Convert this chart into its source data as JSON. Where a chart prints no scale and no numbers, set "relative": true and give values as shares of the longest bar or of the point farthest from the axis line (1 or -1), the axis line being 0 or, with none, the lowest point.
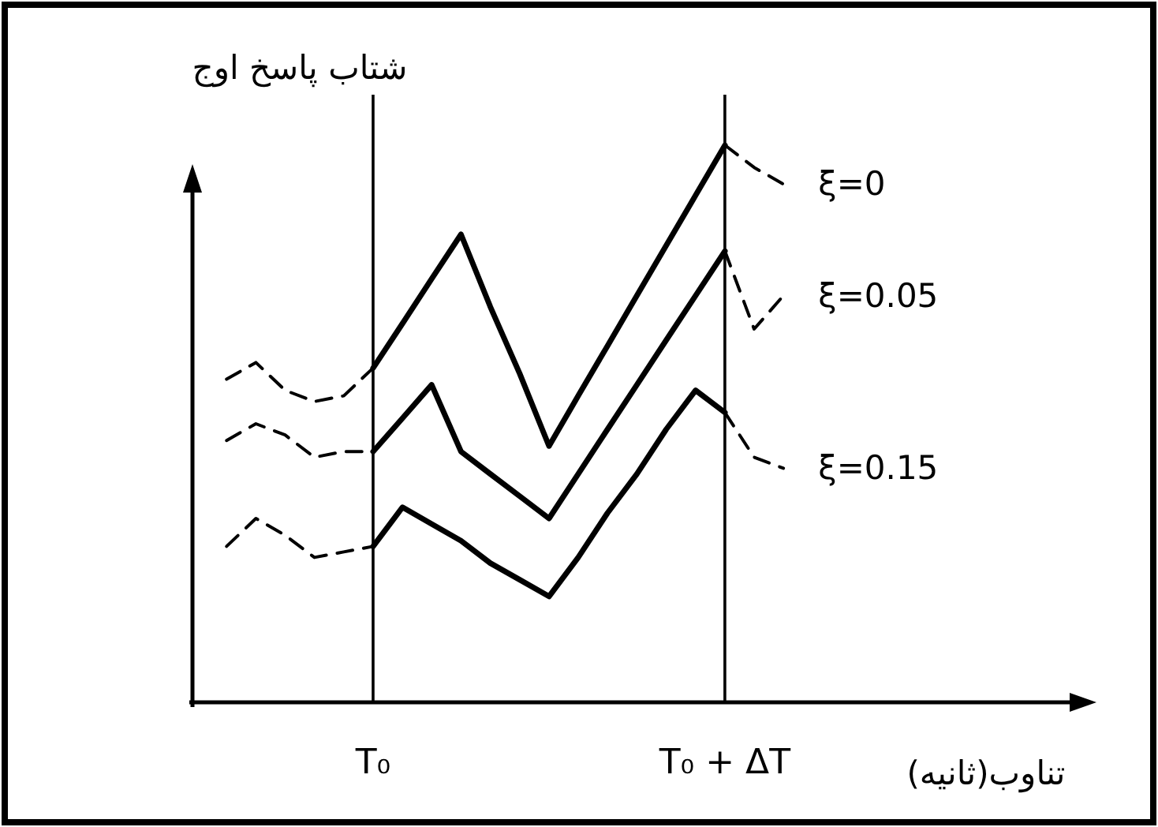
{
  "chart_data": {
    "type": "line",
    "relative": true,
    "ylabel": "شتاب پاسخ اوج",
    "xlabel": "تناوب(ثانیه)",
    "categories": [
      null,
      null,
      null,
      null,
      null,
      null,
      "T₀",
      null,
      null,
      null,
      null,
      null,
      null,
      null,
      null,
      null,
      null,
      null,
      "T₀ + ΔT",
      null,
      null,
      null,
      null,
      null,
      null,
      null,
      null,
      null,
      null,
      null,
      null,
      null
    ],
    "ref_lines": [
      {
        "axis": "x",
        "value": "T₀",
        "color": "#000000"
      },
      {
        "axis": "x",
        "value": "T₀ + ΔT",
        "color": "#000000"
      }
    ],
    "series": [
      {
        "name": "ξ=0",
        "color": "#000000",
        "line_style": "solid",
        "values": [
          null,
          null,
          null,
          null,
          null,
          null,
          0.6,
          0.68,
          0.76,
          0.84,
          0.71,
          0.59,
          0.46,
          0.55,
          0.64,
          0.73,
          0.82,
          0.91,
          1.0,
          null,
          null,
          null,
          null,
          null,
          null,
          null,
          null,
          null,
          null,
          null,
          null,
          null
        ]
      },
      {
        "color": "#000000",
        "line_style": "dashed",
        "values": [
          null,
          null,
          null,
          null,
          null,
          null,
          null,
          null,
          null,
          null,
          null,
          null,
          null,
          null,
          null,
          null,
          null,
          null,
          1.0,
          0.96,
          0.93,
          null,
          null,
          null,
          null,
          null,
          null,
          null,
          null,
          null,
          null,
          null
        ]
      },
      {
        "color": "#000000",
        "line_style": "dashed",
        "values": [
          null,
          0.58,
          0.61,
          0.56,
          0.54,
          0.55,
          0.6,
          null,
          null,
          null,
          null,
          null,
          null,
          null,
          null,
          null,
          null,
          null,
          null,
          null,
          null,
          null,
          null,
          null,
          null,
          null,
          null,
          null,
          null,
          null,
          null,
          null
        ]
      },
      {
        "name": "ξ=0.05",
        "color": "#000000",
        "line_style": "solid",
        "values": [
          null,
          null,
          null,
          null,
          null,
          null,
          0.45,
          0.51,
          0.57,
          0.45,
          0.41,
          0.37,
          0.33,
          0.41,
          0.49,
          0.57,
          0.65,
          0.73,
          0.81,
          null,
          null,
          null,
          null,
          null,
          null,
          null,
          null,
          null,
          null,
          null,
          null,
          null
        ]
      },
      {
        "color": "#000000",
        "line_style": "dashed",
        "values": [
          null,
          null,
          null,
          null,
          null,
          null,
          null,
          null,
          null,
          null,
          null,
          null,
          null,
          null,
          null,
          null,
          null,
          null,
          0.81,
          0.67,
          0.73,
          null,
          null,
          null,
          null,
          null,
          null,
          null,
          null,
          null,
          null,
          null
        ]
      },
      {
        "color": "#000000",
        "line_style": "dashed",
        "values": [
          null,
          0.47,
          0.5,
          0.48,
          0.44,
          0.45,
          0.45,
          null,
          null,
          null,
          null,
          null,
          null,
          null,
          null,
          null,
          null,
          null,
          null,
          null,
          null,
          null,
          null,
          null,
          null,
          null,
          null,
          null,
          null,
          null,
          null,
          null
        ]
      },
      {
        "name": "ξ=0.15",
        "color": "#000000",
        "line_style": "solid",
        "values": [
          null,
          null,
          null,
          null,
          null,
          null,
          0.28,
          0.35,
          0.32,
          0.29,
          0.25,
          0.22,
          0.19,
          0.26,
          0.34,
          0.41,
          0.49,
          0.56,
          0.52,
          null,
          null,
          null,
          null,
          null,
          null,
          null,
          null,
          null,
          null,
          null,
          null,
          null
        ]
      },
      {
        "color": "#000000",
        "line_style": "dashed",
        "values": [
          null,
          null,
          null,
          null,
          null,
          null,
          null,
          null,
          null,
          null,
          null,
          null,
          null,
          null,
          null,
          null,
          null,
          null,
          0.52,
          0.44,
          0.42,
          null,
          null,
          null,
          null,
          null,
          null,
          null,
          null,
          null,
          null,
          null
        ]
      },
      {
        "color": "#000000",
        "line_style": "dashed",
        "values": [
          null,
          0.28,
          0.33,
          0.3,
          0.26,
          0.27,
          0.28,
          null,
          null,
          null,
          null,
          null,
          null,
          null,
          null,
          null,
          null,
          null,
          null,
          null,
          null,
          null,
          null,
          null,
          null,
          null,
          null,
          null,
          null,
          null,
          null,
          null
        ]
      }
    ]
  }
}
